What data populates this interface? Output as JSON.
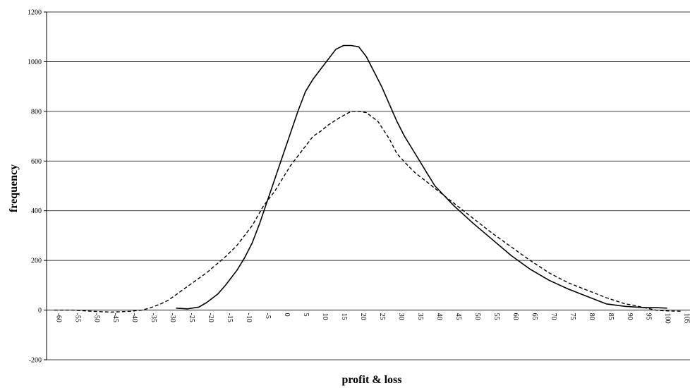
{
  "chart_data": {
    "type": "line",
    "title": "",
    "xlabel": "profit & loss",
    "ylabel": "frequency",
    "ylim": [
      -200,
      1200
    ],
    "yticks": [
      -200,
      0,
      200,
      400,
      600,
      800,
      1000,
      1200
    ],
    "xlim": [
      -62,
      107
    ],
    "xticks": [
      -60,
      -55,
      -50,
      -45,
      -40,
      -35,
      -30,
      -25,
      -20,
      -15,
      -10,
      -5,
      0,
      5,
      10,
      15,
      20,
      25,
      30,
      35,
      40,
      45,
      50,
      55,
      60,
      65,
      70,
      75,
      80,
      85,
      90,
      95,
      100,
      105
    ],
    "grid": "horizontal",
    "legend": "none",
    "series": [
      {
        "style": "solid",
        "color": "#000000",
        "x": [
          -28,
          -25,
          -22,
          -20,
          -17,
          -15,
          -12,
          -10,
          -8,
          -6,
          -4,
          -2,
          0,
          2,
          4,
          6,
          8,
          10,
          12,
          14,
          16,
          18,
          20,
          22,
          24,
          26,
          28,
          30,
          32,
          35,
          38,
          40,
          45,
          50,
          55,
          60,
          65,
          70,
          75,
          80,
          85,
          90,
          95,
          98,
          101
        ],
        "y": [
          8,
          5,
          12,
          30,
          65,
          100,
          160,
          210,
          270,
          350,
          440,
          530,
          620,
          710,
          800,
          880,
          930,
          970,
          1010,
          1050,
          1065,
          1065,
          1060,
          1020,
          960,
          900,
          830,
          760,
          700,
          625,
          550,
          500,
          420,
          350,
          285,
          220,
          165,
          120,
          85,
          55,
          25,
          15,
          10,
          10,
          8
        ]
      },
      {
        "style": "dashed",
        "color": "#000000",
        "x": [
          -60,
          -55,
          -50,
          -45,
          -40,
          -37,
          -35,
          -32,
          -30,
          -25,
          -20,
          -15,
          -12,
          -10,
          -8,
          -5,
          -2,
          0,
          2,
          5,
          8,
          10,
          12,
          15,
          18,
          20,
          22,
          25,
          28,
          30,
          33,
          35,
          38,
          40,
          45,
          50,
          55,
          60,
          65,
          70,
          75,
          80,
          85,
          90,
          92,
          95,
          98,
          100,
          105
        ],
        "y": [
          0,
          0,
          -5,
          -8,
          -5,
          0,
          8,
          25,
          40,
          95,
          150,
          215,
          260,
          300,
          340,
          420,
          480,
          530,
          580,
          640,
          700,
          720,
          745,
          775,
          800,
          800,
          795,
          760,
          690,
          630,
          580,
          550,
          515,
          490,
          430,
          370,
          310,
          255,
          200,
          150,
          110,
          80,
          50,
          25,
          20,
          10,
          0,
          -3,
          -5
        ]
      }
    ]
  }
}
